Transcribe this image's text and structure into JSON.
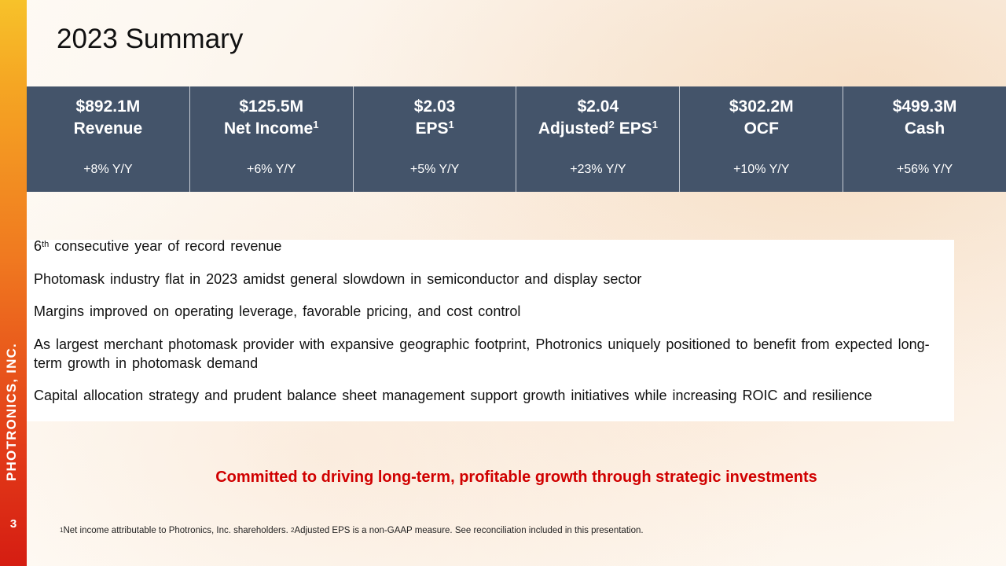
{
  "side_brand": "PHOTRONICS, INC.",
  "page_number": "3",
  "title": "2023 Summary",
  "metrics": [
    {
      "value": "$892.1M",
      "label": "Revenue",
      "label_sup": "",
      "label_mid": "",
      "label_sup2": "",
      "change": "+8% Y/Y"
    },
    {
      "value": "$125.5M",
      "label": "Net Income",
      "label_sup": "1",
      "label_mid": "",
      "label_sup2": "",
      "change": "+6% Y/Y"
    },
    {
      "value": "$2.03",
      "label": "EPS",
      "label_sup": "1",
      "label_mid": "",
      "label_sup2": "",
      "change": "+5% Y/Y"
    },
    {
      "value": "$2.04",
      "label": "Adjusted",
      "label_sup": "2",
      "label_mid": " EPS",
      "label_sup2": "1",
      "change": "+23% Y/Y"
    },
    {
      "value": "$302.2M",
      "label": "OCF",
      "label_sup": "",
      "label_mid": "",
      "label_sup2": "",
      "change": "+10% Y/Y"
    },
    {
      "value": "$499.3M",
      "label": "Cash",
      "label_sup": "",
      "label_mid": "",
      "label_sup2": "",
      "change": "+56% Y/Y"
    }
  ],
  "bullets": {
    "first_num": "6",
    "first_sup": "th",
    "first_rest": " consecutive year of record revenue",
    "items": [
      "Photomask industry flat in 2023 amidst general slowdown in semiconductor and display sector",
      "Margins improved on operating leverage, favorable pricing, and cost control",
      "As largest merchant photomask provider with expansive geographic footprint, Photronics uniquely positioned to benefit from expected long-term growth in photomask demand",
      "Capital allocation strategy and prudent balance sheet management support growth initiatives while increasing ROIC and resilience"
    ]
  },
  "tagline": "Committed to driving long-term, profitable growth through strategic investments",
  "footnote": {
    "sup1": "1",
    "text1": "Net income attributable to Photronics, Inc. shareholders. ",
    "sup2": "2",
    "text2": "Adjusted EPS is a non-GAAP measure. See reconciliation included in this presentation."
  },
  "colors": {
    "band": "#44546a",
    "tagline": "#d00000"
  }
}
